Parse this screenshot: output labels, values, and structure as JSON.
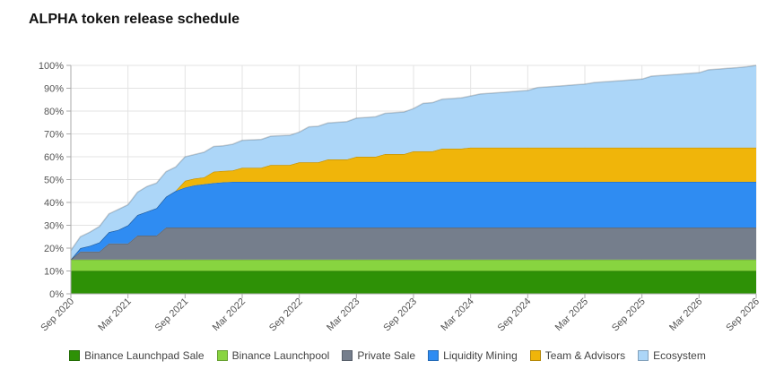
{
  "chart_data": {
    "type": "area",
    "stacked": true,
    "title": "ALPHA token release schedule",
    "xlabel": "",
    "ylabel": "",
    "ylim": [
      0,
      100
    ],
    "y_unit": "%",
    "y_ticks": [
      "0%",
      "10%",
      "20%",
      "30%",
      "40%",
      "50%",
      "60%",
      "70%",
      "80%",
      "90%",
      "100%"
    ],
    "x_ticks": [
      "Sep 2020",
      "Mar 2021",
      "Sep 2021",
      "Mar 2022",
      "Sep 2022",
      "Mar 2023",
      "Sep 2023",
      "Mar 2024",
      "Sep 2024",
      "Mar 2025",
      "Sep 2025",
      "Mar 2026",
      "Sep 2026"
    ],
    "x": [
      "2020-09",
      "2020-10",
      "2020-11",
      "2020-12",
      "2021-01",
      "2021-02",
      "2021-03",
      "2021-04",
      "2021-05",
      "2021-06",
      "2021-07",
      "2021-08",
      "2021-09",
      "2021-10",
      "2021-11",
      "2021-12",
      "2022-01",
      "2022-02",
      "2022-03",
      "2022-04",
      "2022-05",
      "2022-06",
      "2022-07",
      "2022-08",
      "2022-09",
      "2022-10",
      "2022-11",
      "2022-12",
      "2023-01",
      "2023-02",
      "2023-03",
      "2023-04",
      "2023-05",
      "2023-06",
      "2023-07",
      "2023-08",
      "2023-09",
      "2023-10",
      "2023-11",
      "2023-12",
      "2024-01",
      "2024-02",
      "2024-03",
      "2024-04",
      "2024-05",
      "2024-06",
      "2024-07",
      "2024-08",
      "2024-09",
      "2024-10",
      "2024-11",
      "2024-12",
      "2025-01",
      "2025-02",
      "2025-03",
      "2025-04",
      "2025-05",
      "2025-06",
      "2025-07",
      "2025-08",
      "2025-09",
      "2025-10",
      "2025-11",
      "2025-12",
      "2026-01",
      "2026-02",
      "2026-03",
      "2026-04",
      "2026-05",
      "2026-06",
      "2026-07",
      "2026-08",
      "2026-09"
    ],
    "legend_position": "bottom",
    "grid": true,
    "series": [
      {
        "name": "Binance Launchpad Sale",
        "color": "#2e9106",
        "values": [
          10,
          10,
          10,
          10,
          10,
          10,
          10,
          10,
          10,
          10,
          10,
          10,
          10,
          10,
          10,
          10,
          10,
          10,
          10,
          10,
          10,
          10,
          10,
          10,
          10,
          10,
          10,
          10,
          10,
          10,
          10,
          10,
          10,
          10,
          10,
          10,
          10,
          10,
          10,
          10,
          10,
          10,
          10,
          10,
          10,
          10,
          10,
          10,
          10,
          10,
          10,
          10,
          10,
          10,
          10,
          10,
          10,
          10,
          10,
          10,
          10,
          10,
          10,
          10,
          10,
          10,
          10,
          10,
          10,
          10,
          10,
          10,
          10
        ]
      },
      {
        "name": "Binance Launchpool",
        "color": "#88d440",
        "values": [
          5,
          5,
          5,
          5,
          5,
          5,
          5,
          5,
          5,
          5,
          5,
          5,
          5,
          5,
          5,
          5,
          5,
          5,
          5,
          5,
          5,
          5,
          5,
          5,
          5,
          5,
          5,
          5,
          5,
          5,
          5,
          5,
          5,
          5,
          5,
          5,
          5,
          5,
          5,
          5,
          5,
          5,
          5,
          5,
          5,
          5,
          5,
          5,
          5,
          5,
          5,
          5,
          5,
          5,
          5,
          5,
          5,
          5,
          5,
          5,
          5,
          5,
          5,
          5,
          5,
          5,
          5,
          5,
          5,
          5,
          5,
          5,
          5
        ]
      },
      {
        "name": "Private Sale",
        "color": "#757e8c",
        "values": [
          0,
          3.5,
          3.5,
          3.5,
          7,
          7,
          7,
          10.5,
          10.5,
          10.5,
          14,
          14,
          14,
          14,
          14,
          14,
          14,
          14,
          14,
          14,
          14,
          14,
          14,
          14,
          14,
          14,
          14,
          14,
          14,
          14,
          14,
          14,
          14,
          14,
          14,
          14,
          14,
          14,
          14,
          14,
          14,
          14,
          14,
          14,
          14,
          14,
          14,
          14,
          14,
          14,
          14,
          14,
          14,
          14,
          14,
          14,
          14,
          14,
          14,
          14,
          14,
          14,
          14,
          14,
          14,
          14,
          14,
          14,
          14,
          14,
          14,
          14,
          14
        ]
      },
      {
        "name": "Liquidity Mining",
        "color": "#2f8cf2",
        "values": [
          0,
          1.5,
          2.5,
          4,
          5,
          6,
          8,
          9,
          10.5,
          12,
          13.5,
          16,
          17.5,
          18.5,
          19,
          19.5,
          19.8,
          20,
          20,
          20,
          20,
          20,
          20,
          20,
          20,
          20,
          20,
          20,
          20,
          20,
          20,
          20,
          20,
          20,
          20,
          20,
          20,
          20,
          20,
          20,
          20,
          20,
          20,
          20,
          20,
          20,
          20,
          20,
          20,
          20,
          20,
          20,
          20,
          20,
          20,
          20,
          20,
          20,
          20,
          20,
          20,
          20,
          20,
          20,
          20,
          20,
          20,
          20,
          20,
          20,
          20,
          20,
          20
        ]
      },
      {
        "name": "Team & Advisors",
        "color": "#f0b50a",
        "values": [
          0,
          0,
          0,
          0,
          0,
          0,
          0,
          0,
          0,
          0,
          0,
          0,
          3,
          3,
          3,
          5,
          5,
          5,
          6.2,
          6.2,
          6.2,
          7.4,
          7.4,
          7.4,
          8.6,
          8.6,
          8.6,
          9.8,
          9.8,
          9.8,
          11,
          11,
          11,
          12.2,
          12.2,
          12.2,
          13.4,
          13.4,
          13.4,
          14.6,
          14.6,
          14.6,
          15,
          15,
          15,
          15,
          15,
          15,
          15,
          15,
          15,
          15,
          15,
          15,
          15,
          15,
          15,
          15,
          15,
          15,
          15,
          15,
          15,
          15,
          15,
          15,
          15,
          15,
          15,
          15,
          15,
          15,
          15
        ]
      },
      {
        "name": "Ecosystem",
        "color": "#acd6f8",
        "values": [
          4,
          5,
          6,
          7,
          8,
          9,
          9,
          10,
          11,
          11,
          11,
          10.5,
          10.5,
          10.5,
          11,
          11,
          11,
          11.5,
          12,
          12.2,
          12.4,
          12.6,
          12.8,
          13,
          13.2,
          15.5,
          15.8,
          16,
          16.3,
          16.6,
          16.9,
          17.2,
          17.5,
          17.8,
          18.1,
          18.4,
          18.7,
          21,
          21.3,
          21.6,
          21.9,
          22.2,
          22.6,
          23.5,
          23.8,
          24.1,
          24.4,
          24.7,
          25,
          26.3,
          26.6,
          26.9,
          27.2,
          27.5,
          27.8,
          28.5,
          28.8,
          29.1,
          29.4,
          29.7,
          30,
          31.3,
          31.6,
          31.9,
          32.2,
          32.5,
          32.8,
          34.1,
          34.4,
          34.7,
          35,
          35.4,
          36
        ]
      }
    ]
  }
}
